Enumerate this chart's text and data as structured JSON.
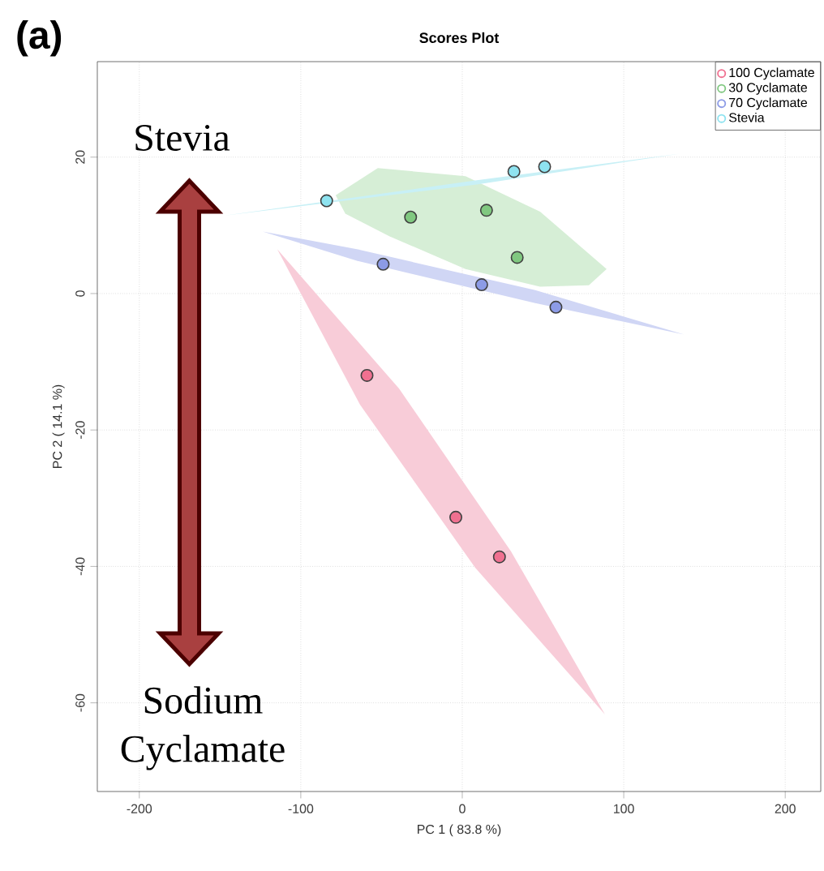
{
  "chart_data": {
    "type": "scatter",
    "title": "Scores Plot",
    "xlabel": "PC 1 ( 83.8 %)",
    "ylabel": "PC 2 ( 14.1 %)",
    "xlim": [
      -226,
      222
    ],
    "ylim": [
      -73,
      34
    ],
    "xticks": [
      -200,
      -100,
      0,
      100,
      200
    ],
    "yticks": [
      -60,
      -40,
      -20,
      0,
      20
    ],
    "grid": true,
    "legend": "top right",
    "marker": "circle",
    "annotations": [
      "(a)",
      "Stevia",
      "Sodium Cyclamate"
    ],
    "series": [
      {
        "type": "area",
        "marker": "none",
        "color": "#f8ccd8",
        "x": [
          -114.6,
          -39.2,
          30.2,
          88.4,
          8.0,
          -63.3
        ],
        "values": [
          6.5,
          -13.9,
          -37.8,
          -61.7,
          -40.2,
          -16.3
        ]
      },
      {
        "type": "area",
        "marker": "none",
        "color": "#d6eed6",
        "x": [
          -78.4,
          -52.3,
          2.0,
          48.2,
          89.4,
          78.4,
          48.2,
          2.0,
          -45.2,
          -72.4
        ],
        "values": [
          14.4,
          18.4,
          17.2,
          12.0,
          3.6,
          1.2,
          1.0,
          3.6,
          8.4,
          11.7
        ]
      },
      {
        "type": "area",
        "marker": "none",
        "color": "#d0d6f5",
        "x": [
          -123.6,
          -65.3,
          45.2,
          137.4,
          45.2,
          -65.3
        ],
        "values": [
          9.1,
          6.5,
          0.5,
          -6.0,
          -1.4,
          4.8
        ]
      },
      {
        "type": "area",
        "marker": "none",
        "color": "#c8f0f6",
        "x": [
          -148.0,
          9.0,
          135.0,
          9.0
        ],
        "values": [
          11.4,
          16.6,
          20.5,
          16.0
        ]
      },
      {
        "name": "100 Cyclamate",
        "color": "#f07090",
        "x": [
          -59,
          -4,
          23
        ],
        "values": [
          -12.0,
          -32.8,
          -38.6
        ]
      },
      {
        "name": "30 Cyclamate",
        "color": "#80c880",
        "x": [
          -32,
          15,
          34
        ],
        "values": [
          11.2,
          12.2,
          5.3
        ]
      },
      {
        "name": "70 Cyclamate",
        "color": "#8c9be6",
        "x": [
          -49,
          12,
          58
        ],
        "values": [
          4.3,
          1.3,
          -2.0
        ]
      },
      {
        "name": "Stevia",
        "color": "#8ee3f0",
        "x": [
          -84,
          32,
          51
        ],
        "values": [
          13.6,
          17.9,
          18.6
        ]
      }
    ]
  }
}
